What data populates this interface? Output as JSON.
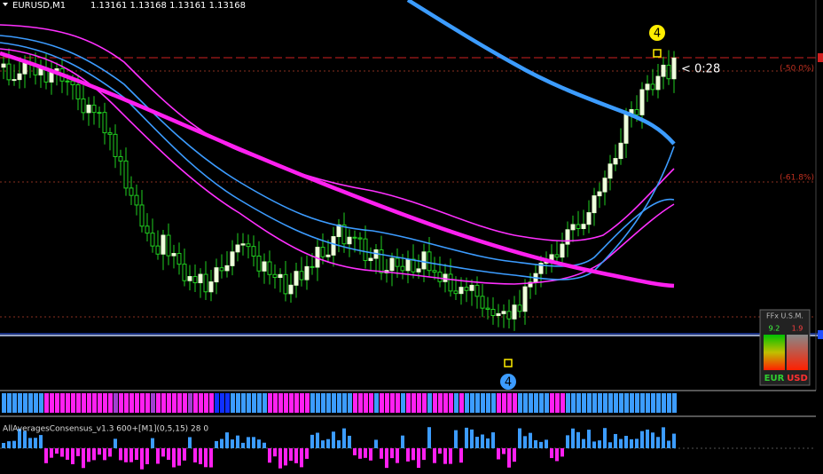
{
  "header": {
    "symbol": "EURUSD,M1",
    "prices": "1.13161 1.13168 1.13161 1.13168"
  },
  "markers": {
    "top": "4",
    "bottom": "4"
  },
  "timer": "< 0:28",
  "levels": {
    "fifty": "(-50.0%)",
    "sixtyone": "(-61.8%)"
  },
  "indicator": {
    "label": "AllAveragesConsensus_v1.3 600+[M1](0,5,15) 28 0"
  },
  "panel": {
    "title": "FFx U.S.M.",
    "eur_value": "9.2",
    "usd_value": "1.9",
    "eur": "EUR",
    "usd": "USD"
  }
}
